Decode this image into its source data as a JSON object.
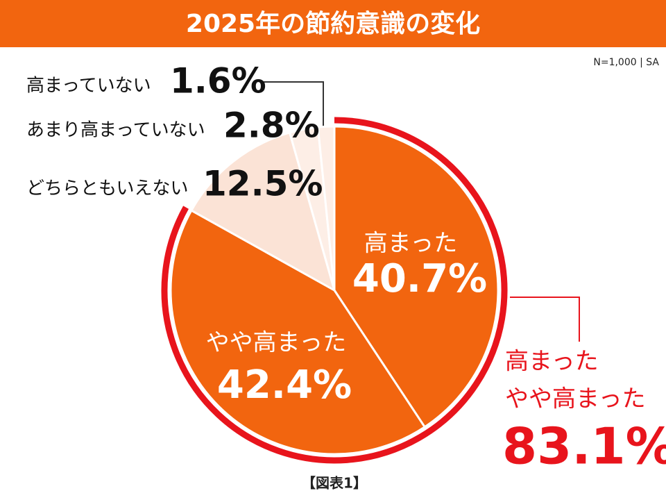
{
  "chart_data": {
    "type": "pie",
    "title": "2025年の節約意識の変化",
    "note": "N=1,000 | SA",
    "caption": "【図表1】",
    "categories": [
      "高まった",
      "やや高まった",
      "どちらともいえない",
      "あまり高まっていない",
      "高まっていない"
    ],
    "values": [
      40.7,
      42.4,
      12.5,
      2.8,
      1.6
    ],
    "value_labels": [
      "40.7%",
      "42.4%",
      "12.5%",
      "2.8%",
      "1.6%"
    ],
    "colors": [
      "#f2650f",
      "#f2650f",
      "#fbe3d6",
      "#fdeee6",
      "#fdeee6"
    ],
    "summary": {
      "lines": [
        "高まった",
        "やや高まった"
      ],
      "value": 83.1,
      "value_label": "83.1%",
      "color": "#e8141c"
    }
  }
}
